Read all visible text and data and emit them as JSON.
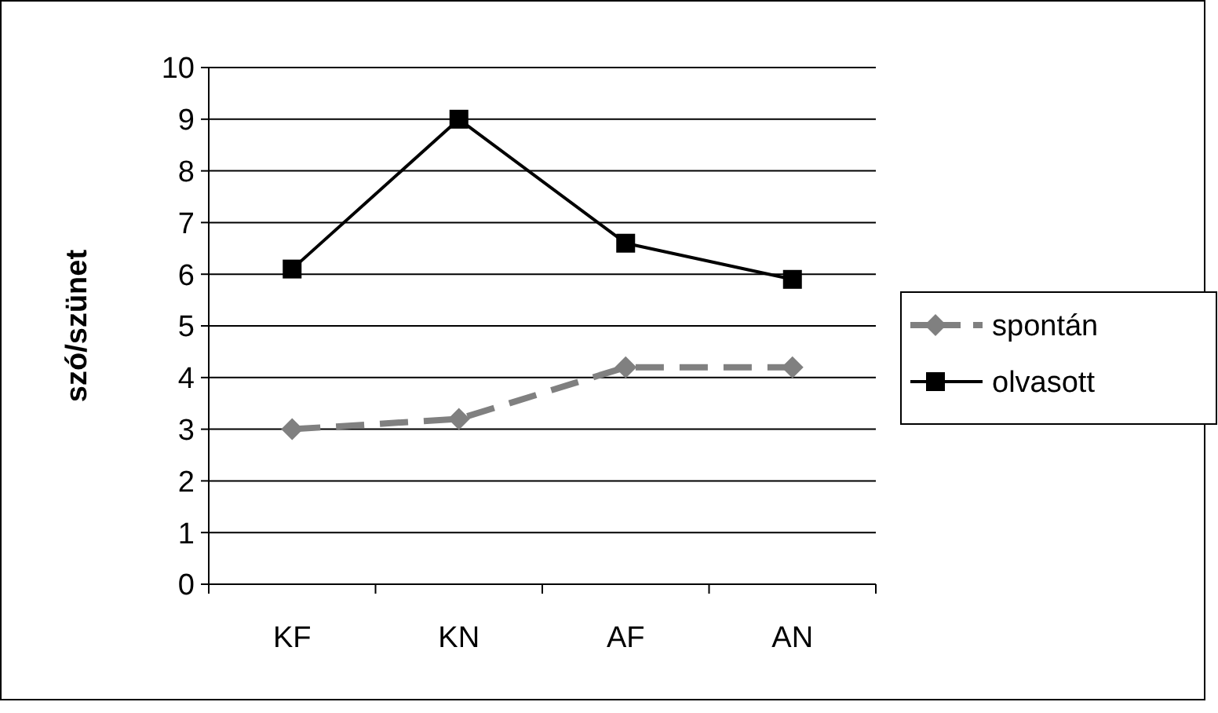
{
  "chart_data": {
    "type": "line",
    "ylabel": "szó/szünet",
    "categories": [
      "KF",
      "KN",
      "AF",
      "AN"
    ],
    "series": [
      {
        "name": "spontán",
        "color": "#808080",
        "values": [
          3.0,
          3.2,
          4.2,
          4.2
        ],
        "marker": "diamond",
        "line_style": "dashed"
      },
      {
        "name": "olvasott",
        "color": "#000000",
        "values": [
          6.1,
          9.0,
          6.6,
          5.9
        ],
        "marker": "square",
        "line_style": "solid"
      }
    ],
    "ylim": [
      0,
      10
    ],
    "yticks": [
      0,
      1,
      2,
      3,
      4,
      5,
      6,
      7,
      8,
      9,
      10
    ],
    "grid": "y",
    "legend": "right"
  }
}
